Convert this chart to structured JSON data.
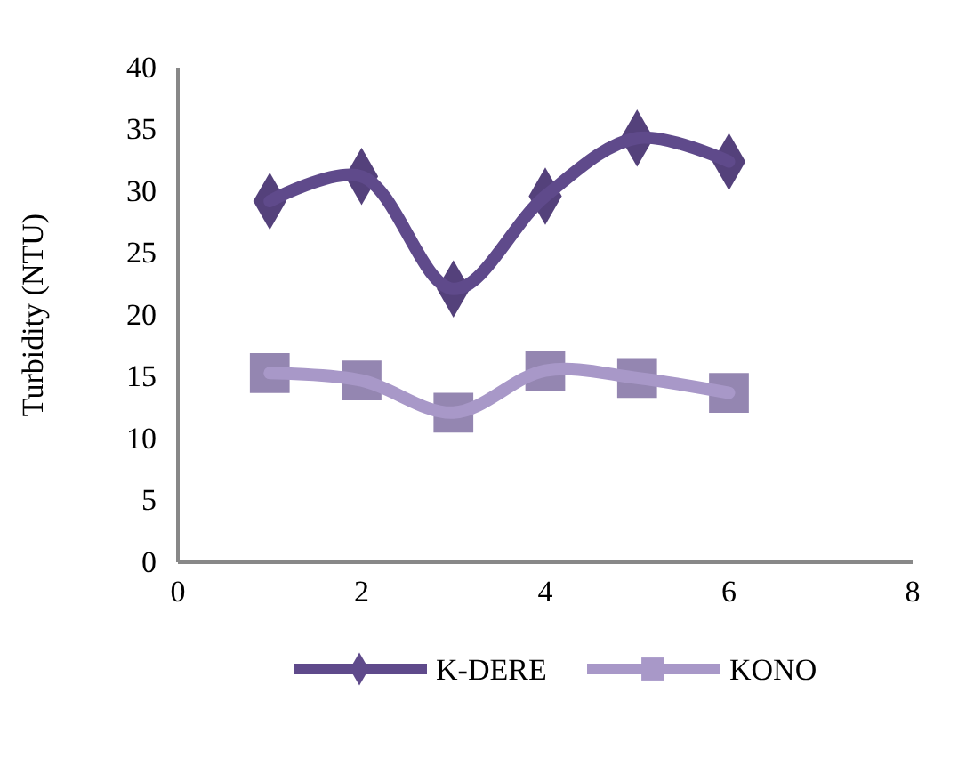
{
  "chart_data": {
    "type": "line",
    "ylabel": "Turbidity (NTU)",
    "x": [
      1,
      2,
      3,
      4,
      5,
      6
    ],
    "xlim": [
      0,
      8
    ],
    "xticks": [
      0,
      2,
      4,
      6,
      8
    ],
    "ylim": [
      0,
      40
    ],
    "yticks": [
      0,
      5,
      10,
      15,
      20,
      25,
      30,
      35,
      40
    ],
    "grid": false,
    "legend": "bottom",
    "line_style": "solid",
    "series": [
      {
        "name": "K-DERE",
        "color": "#5f4a8b",
        "marker": "diamond",
        "values": [
          29.2,
          31.2,
          22.1,
          29.6,
          34.3,
          32.4
        ]
      },
      {
        "name": "KONO",
        "color": "#a898c8",
        "marker": "square",
        "values": [
          15.3,
          14.7,
          12.1,
          15.5,
          14.9,
          13.7
        ]
      }
    ]
  }
}
